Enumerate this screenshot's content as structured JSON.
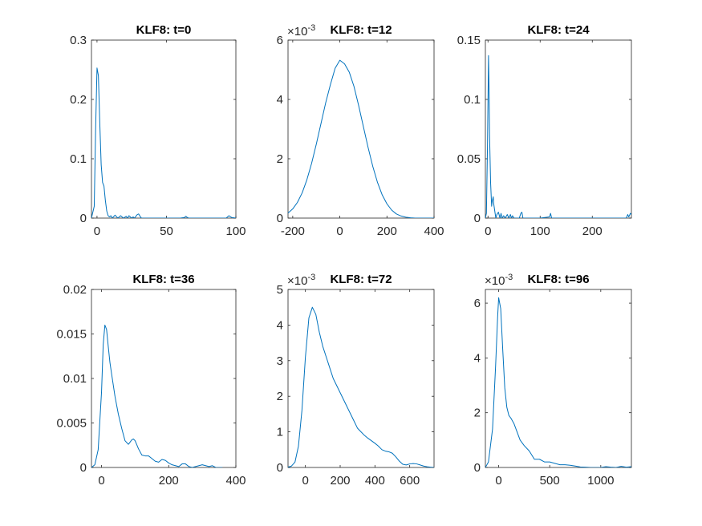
{
  "figure": {
    "axis_color": "#262626",
    "line_color": "#0072bd",
    "background": "#ffffff"
  },
  "chart_data": [
    {
      "type": "line",
      "title": "KLF8: t=0",
      "xlim": [
        -4,
        100
      ],
      "ylim": [
        0,
        0.3
      ],
      "xticks": [
        0,
        50,
        100
      ],
      "xtick_labels": [
        "0",
        "50",
        "100"
      ],
      "yticks": [
        0,
        0.1,
        0.2,
        0.3
      ],
      "ytick_labels": [
        "0",
        "0.1",
        "0.2",
        "0.3"
      ],
      "exponent_label": null,
      "series": [
        {
          "x": [
            -4,
            -2,
            -1,
            0,
            1,
            2,
            3,
            4,
            5,
            6,
            7,
            8,
            9,
            10,
            11,
            13,
            15,
            17,
            19,
            21,
            22,
            23,
            25,
            26,
            27,
            29,
            30,
            31,
            32,
            34,
            40,
            50,
            60,
            63,
            64,
            65,
            66,
            70,
            80,
            90,
            93,
            95,
            97,
            100
          ],
          "y": [
            0.0,
            0.02,
            0.15,
            0.253,
            0.24,
            0.16,
            0.09,
            0.06,
            0.054,
            0.03,
            0.012,
            0.004,
            0.002,
            0.004,
            0.0,
            0.005,
            0.0,
            0.004,
            0.0,
            0.003,
            0.0,
            0.004,
            0.0,
            0.002,
            0.0,
            0.006,
            0.007,
            0.003,
            0.0,
            0.0,
            0.0,
            0.0,
            0.0,
            0.001,
            0.003,
            0.001,
            0.0,
            0.0,
            0.0,
            0.0,
            0.0,
            0.004,
            0.001,
            0.0
          ]
        }
      ]
    },
    {
      "type": "line",
      "title": "KLF8: t=12",
      "xlim": [
        -220,
        400
      ],
      "ylim": [
        0,
        0.006
      ],
      "xticks": [
        -200,
        0,
        200,
        400
      ],
      "xtick_labels": [
        "-200",
        "0",
        "200",
        "400"
      ],
      "yticks": [
        0,
        0.002,
        0.004,
        0.006
      ],
      "ytick_labels": [
        "0",
        "2",
        "4",
        "6"
      ],
      "exponent_label": {
        "base": "×10",
        "power": "-3"
      },
      "series": [
        {
          "x": [
            -220,
            -200,
            -180,
            -160,
            -140,
            -120,
            -100,
            -80,
            -60,
            -40,
            -20,
            0,
            20,
            40,
            60,
            80,
            100,
            120,
            140,
            160,
            180,
            200,
            220,
            240,
            260,
            280,
            300,
            320,
            340,
            360,
            380,
            400
          ],
          "y": [
            0.00017,
            0.00031,
            0.00053,
            0.00085,
            0.00129,
            0.00184,
            0.00249,
            0.00319,
            0.00389,
            0.0045,
            0.00505,
            0.00532,
            0.0052,
            0.00492,
            0.00444,
            0.00379,
            0.00308,
            0.00238,
            0.00174,
            0.0012,
            0.00078,
            0.00048,
            0.00027,
            0.00014,
            7e-05,
            3e-05,
            1e-05,
            0.0,
            0.0,
            0.0,
            0.0,
            0.0
          ]
        }
      ]
    },
    {
      "type": "line",
      "title": "KLF8: t=24",
      "xlim": [
        -5,
        275
      ],
      "ylim": [
        0,
        0.15
      ],
      "xticks": [
        0,
        100,
        200
      ],
      "xtick_labels": [
        "0",
        "100",
        "200"
      ],
      "yticks": [
        0,
        0.05,
        0.1,
        0.15
      ],
      "ytick_labels": [
        "0",
        "0.05",
        "0.1",
        "0.15"
      ],
      "exponent_label": null,
      "series": [
        {
          "x": [
            -5,
            -3,
            -1,
            1,
            2,
            3,
            5,
            7,
            8,
            10,
            11,
            13,
            15,
            17,
            20,
            23,
            25,
            27,
            30,
            33,
            37,
            40,
            43,
            45,
            47,
            50,
            55,
            60,
            63,
            65,
            67,
            70,
            80,
            100,
            118,
            120,
            122,
            140,
            160,
            200,
            240,
            265,
            268,
            270,
            273,
            275
          ],
          "y": [
            0.0,
            0.004,
            0.06,
            0.137,
            0.11,
            0.07,
            0.03,
            0.01,
            0.014,
            0.018,
            0.012,
            0.006,
            0.0,
            0.003,
            0.005,
            0.0,
            0.004,
            0.0,
            0.002,
            0.0,
            0.003,
            0.0,
            0.003,
            0.0,
            0.002,
            0.0,
            0.0,
            0.0,
            0.004,
            0.005,
            0.0,
            0.0,
            0.0,
            0.0,
            0.001,
            0.004,
            0.0,
            0.0,
            0.0,
            0.0,
            0.0,
            0.0,
            0.003,
            0.001,
            0.004,
            0.003
          ]
        }
      ]
    },
    {
      "type": "line",
      "title": "KLF8: t=36",
      "xlim": [
        -30,
        400
      ],
      "ylim": [
        0,
        0.02
      ],
      "xticks": [
        0,
        200,
        400
      ],
      "xtick_labels": [
        "0",
        "200",
        "400"
      ],
      "yticks": [
        0,
        0.005,
        0.01,
        0.015,
        0.02
      ],
      "ytick_labels": [
        "0",
        "0.005",
        "0.01",
        "0.015",
        "0.02"
      ],
      "exponent_label": null,
      "series": [
        {
          "x": [
            -30,
            -20,
            -10,
            0,
            5,
            10,
            15,
            20,
            25,
            30,
            40,
            50,
            60,
            70,
            80,
            90,
            95,
            100,
            110,
            120,
            130,
            140,
            150,
            160,
            170,
            180,
            190,
            200,
            210,
            220,
            230,
            240,
            250,
            260,
            270,
            280,
            290,
            300,
            310,
            320,
            330,
            340,
            350,
            360
          ],
          "y": [
            0.0,
            0.0003,
            0.002,
            0.0085,
            0.0138,
            0.016,
            0.0155,
            0.0136,
            0.0118,
            0.0105,
            0.008,
            0.006,
            0.0044,
            0.003,
            0.0026,
            0.0031,
            0.0032,
            0.003,
            0.0021,
            0.0014,
            0.0013,
            0.0013,
            0.001,
            0.0007,
            0.0006,
            0.0009,
            0.0008,
            0.0005,
            0.0003,
            0.0002,
            0.0001,
            0.0004,
            0.0004,
            0.0001,
            0.0,
            0.0001,
            0.0002,
            0.0003,
            0.0002,
            0.0001,
            0.0002,
            0.0,
            0.0,
            0.0
          ]
        }
      ]
    },
    {
      "type": "line",
      "title": "KLF8: t=72",
      "xlim": [
        -100,
        740
      ],
      "ylim": [
        0,
        0.005
      ],
      "xticks": [
        0,
        200,
        400,
        600
      ],
      "xtick_labels": [
        "0",
        "200",
        "400",
        "600"
      ],
      "yticks": [
        0,
        0.001,
        0.002,
        0.003,
        0.004,
        0.005
      ],
      "ytick_labels": [
        "0",
        "1",
        "2",
        "3",
        "4",
        "5"
      ],
      "exponent_label": {
        "base": "×10",
        "power": "-3"
      },
      "series": [
        {
          "x": [
            -100,
            -80,
            -60,
            -40,
            -20,
            0,
            20,
            40,
            60,
            80,
            100,
            120,
            140,
            160,
            180,
            200,
            220,
            240,
            260,
            280,
            300,
            320,
            340,
            360,
            380,
            400,
            420,
            440,
            460,
            480,
            500,
            520,
            540,
            560,
            580,
            600,
            620,
            640,
            660,
            680,
            700,
            720,
            740
          ],
          "y": [
            1e-05,
            4e-05,
            0.00015,
            0.0006,
            0.0016,
            0.0031,
            0.0042,
            0.0045,
            0.0043,
            0.0038,
            0.0034,
            0.0031,
            0.0028,
            0.0025,
            0.0023,
            0.0021,
            0.0019,
            0.0017,
            0.0015,
            0.0013,
            0.0011,
            0.001,
            0.0009,
            0.00082,
            0.00075,
            0.00068,
            0.0006,
            0.0005,
            0.00046,
            0.00044,
            0.0004,
            0.0003,
            0.00018,
            9e-05,
            7e-05,
            0.0001,
            0.00011,
            0.0001,
            7e-05,
            4e-05,
            2e-05,
            1e-05,
            0.0
          ]
        }
      ]
    },
    {
      "type": "line",
      "title": "KLF8: t=96",
      "xlim": [
        -130,
        1300
      ],
      "ylim": [
        0,
        0.0065
      ],
      "xticks": [
        0,
        500,
        1000
      ],
      "xtick_labels": [
        "0",
        "500",
        "1000"
      ],
      "yticks": [
        0,
        0.002,
        0.004,
        0.006
      ],
      "ytick_labels": [
        "0",
        "2",
        "4",
        "6"
      ],
      "exponent_label": {
        "base": "×10",
        "power": "-3"
      },
      "series": [
        {
          "x": [
            -130,
            -100,
            -60,
            -30,
            -10,
            0,
            20,
            40,
            60,
            80,
            100,
            120,
            150,
            180,
            210,
            250,
            300,
            350,
            400,
            450,
            500,
            550,
            600,
            650,
            700,
            750,
            800,
            850,
            900,
            950,
            1000,
            1050,
            1100,
            1150,
            1200,
            1250,
            1300
          ],
          "y": [
            0.0,
            0.0002,
            0.0014,
            0.0037,
            0.0055,
            0.0062,
            0.0058,
            0.0043,
            0.0029,
            0.0022,
            0.0019,
            0.0018,
            0.0016,
            0.0013,
            0.001,
            0.0008,
            0.0006,
            0.0003,
            0.0003,
            0.0002,
            0.0002,
            0.00015,
            0.0001,
            0.0001,
            8e-05,
            5e-05,
            2e-05,
            1e-05,
            0.0,
            0.0,
            0.0,
            3e-05,
            1e-05,
            0.0,
            4e-05,
            1e-05,
            3e-05
          ]
        }
      ]
    }
  ]
}
